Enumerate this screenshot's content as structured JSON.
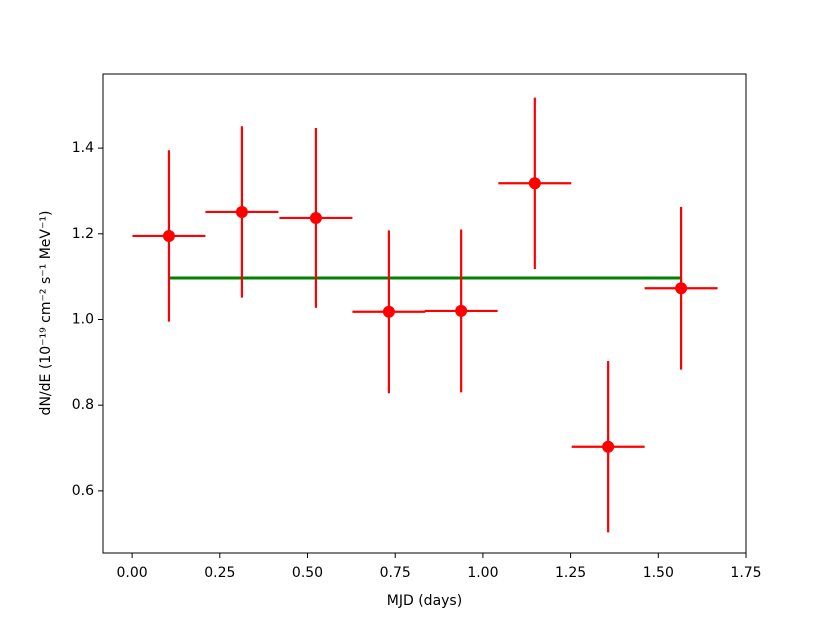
{
  "chart_data": {
    "type": "errorbar",
    "xlabel": "MJD (days)",
    "ylabel": "dN/dE (10⁻¹⁹ cm⁻² s⁻¹ MeV⁻¹)",
    "x": [
      0.105,
      0.313,
      0.524,
      0.732,
      0.938,
      1.148,
      1.357,
      1.565
    ],
    "values": [
      1.195,
      1.251,
      1.237,
      1.018,
      1.02,
      1.318,
      0.703,
      1.073
    ],
    "xerr": [
      0.104,
      0.104,
      0.104,
      0.104,
      0.104,
      0.104,
      0.104,
      0.104
    ],
    "yerr": [
      0.2,
      0.2,
      0.21,
      0.19,
      0.19,
      0.2,
      0.2,
      0.19
    ],
    "color": "#ff0000",
    "fit": {
      "x": [
        0.105,
        1.565
      ],
      "values": [
        1.097,
        1.097
      ],
      "color": "#008000"
    },
    "xlim": [
      -0.083,
      1.75
    ],
    "ylim": [
      0.455,
      1.573
    ],
    "xticks": [
      {
        "value": 0,
        "label": "0.00"
      },
      {
        "value": 0.25,
        "label": "0.25"
      },
      {
        "value": 0.5,
        "label": "0.50"
      },
      {
        "value": 0.75,
        "label": "0.75"
      },
      {
        "value": 1,
        "label": "1.00"
      },
      {
        "value": 1.25,
        "label": "1.25"
      },
      {
        "value": 1.5,
        "label": "1.50"
      },
      {
        "value": 1.75,
        "label": "1.75"
      }
    ],
    "yticks": [
      0.6,
      0.8,
      {
        "value": 1,
        "label": "1.0"
      },
      1.2,
      1.4
    ]
  }
}
